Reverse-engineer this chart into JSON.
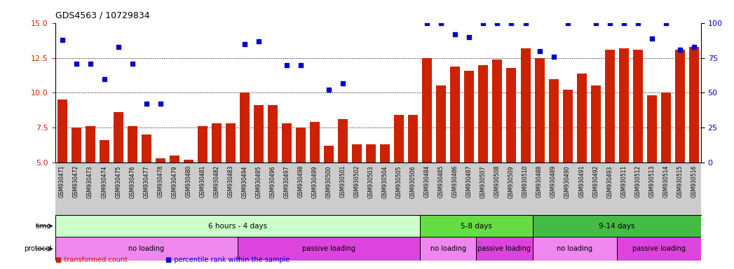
{
  "title": "GDS4563 / 10729834",
  "samples": [
    "GSM930471",
    "GSM930472",
    "GSM930473",
    "GSM930474",
    "GSM930475",
    "GSM930476",
    "GSM930477",
    "GSM930478",
    "GSM930479",
    "GSM930480",
    "GSM930481",
    "GSM930482",
    "GSM930483",
    "GSM930494",
    "GSM930495",
    "GSM930496",
    "GSM930497",
    "GSM930498",
    "GSM930499",
    "GSM930500",
    "GSM930501",
    "GSM930502",
    "GSM930503",
    "GSM930504",
    "GSM930505",
    "GSM930506",
    "GSM930484",
    "GSM930485",
    "GSM930486",
    "GSM930487",
    "GSM930507",
    "GSM930508",
    "GSM930509",
    "GSM930510",
    "GSM930488",
    "GSM930489",
    "GSM930490",
    "GSM930491",
    "GSM930492",
    "GSM930493",
    "GSM930511",
    "GSM930512",
    "GSM930513",
    "GSM930514",
    "GSM930515",
    "GSM930516"
  ],
  "bar_values": [
    9.5,
    7.5,
    7.6,
    6.6,
    8.6,
    7.6,
    7.0,
    5.3,
    5.5,
    5.2,
    7.6,
    7.8,
    7.8,
    10.0,
    9.1,
    9.1,
    7.8,
    7.5,
    7.9,
    6.2,
    8.1,
    6.3,
    6.3,
    6.3,
    8.4,
    8.4,
    12.5,
    10.5,
    11.9,
    11.6,
    12.0,
    12.4,
    11.8,
    13.2,
    12.5,
    11.0,
    10.2,
    11.4,
    10.5,
    13.1,
    13.2,
    13.1,
    9.8,
    10.0,
    13.1,
    13.3
  ],
  "dot_values": [
    13.8,
    12.1,
    12.1,
    11.0,
    13.3,
    12.1,
    9.2,
    9.2,
    null,
    null,
    null,
    null,
    null,
    13.5,
    13.7,
    null,
    12.0,
    12.0,
    null,
    10.2,
    10.7,
    null,
    null,
    null,
    null,
    null,
    15.0,
    15.0,
    14.2,
    14.0,
    15.0,
    15.0,
    15.0,
    15.0,
    13.0,
    12.6,
    15.0,
    null,
    15.0,
    15.0,
    15.0,
    15.0,
    13.9,
    15.0,
    13.1,
    13.3
  ],
  "bar_color": "#cc2200",
  "dot_color": "#0000cc",
  "ylim": [
    5,
    15
  ],
  "yticks_left": [
    5,
    7.5,
    10,
    12.5,
    15
  ],
  "yticks_right": [
    0,
    25,
    50,
    75,
    100
  ],
  "dotted_lines": [
    7.5,
    10.0,
    12.5
  ],
  "time_groups": [
    {
      "label": "6 hours - 4 days",
      "start": 0,
      "end": 26,
      "color": "#ccffcc"
    },
    {
      "label": "5-8 days",
      "start": 26,
      "end": 34,
      "color": "#66dd44"
    },
    {
      "label": "9-14 days",
      "start": 34,
      "end": 46,
      "color": "#44bb44"
    }
  ],
  "protocol_groups": [
    {
      "label": "no loading",
      "start": 0,
      "end": 13,
      "color": "#ee88ee"
    },
    {
      "label": "passive loading",
      "start": 13,
      "end": 26,
      "color": "#dd44dd"
    },
    {
      "label": "no loading",
      "start": 26,
      "end": 30,
      "color": "#ee88ee"
    },
    {
      "label": "passive loading",
      "start": 30,
      "end": 34,
      "color": "#dd44dd"
    },
    {
      "label": "no loading",
      "start": 34,
      "end": 40,
      "color": "#ee88ee"
    },
    {
      "label": "passive loading",
      "start": 40,
      "end": 46,
      "color": "#dd44dd"
    }
  ],
  "background_color": "#ffffff",
  "xticklabel_bg": "#cccccc",
  "title_fontsize": 9,
  "bar_fontsize": 5.5,
  "row_fontsize": 7.5,
  "label_fontsize": 7
}
